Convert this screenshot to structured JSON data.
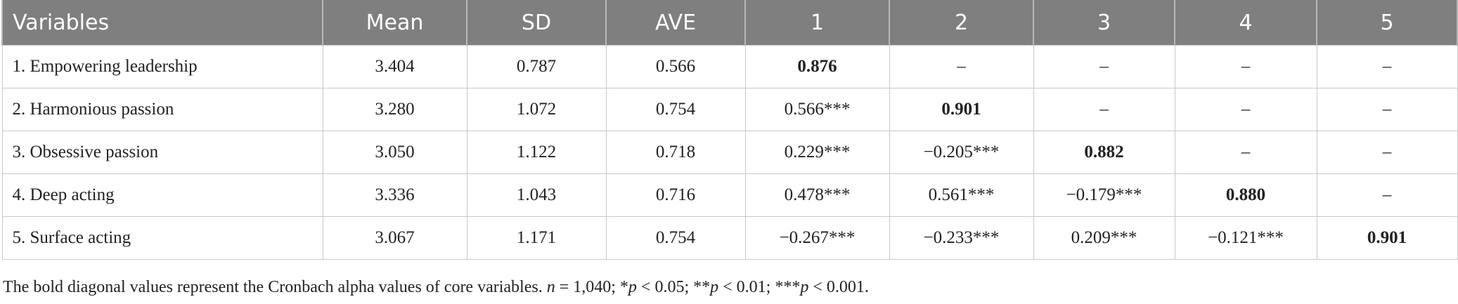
{
  "table": {
    "columns": [
      "Variables",
      "Mean",
      "SD",
      "AVE",
      "1",
      "2",
      "3",
      "4",
      "5"
    ],
    "rows": [
      [
        "1. Empowering leadership",
        "3.404",
        "0.787",
        "0.566",
        "0.876",
        "–",
        "–",
        "–",
        "–"
      ],
      [
        "2. Harmonious passion",
        "3.280",
        "1.072",
        "0.754",
        "0.566***",
        "0.901",
        "–",
        "–",
        "–"
      ],
      [
        "3. Obsessive passion",
        "3.050",
        "1.122",
        "0.718",
        "0.229***",
        "−0.205***",
        "0.882",
        "–",
        "–"
      ],
      [
        "4. Deep acting",
        "3.336",
        "1.043",
        "0.716",
        "0.478***",
        "0.561***",
        "−0.179***",
        "0.880",
        "–"
      ],
      [
        "5. Surface acting",
        "3.067",
        "1.171",
        "0.754",
        "−0.267***",
        "−0.233***",
        "0.209***",
        "−0.121***",
        "0.901"
      ]
    ]
  },
  "note": [
    "The bold diagonal values represent the Cronbach alpha values of core variables. ",
    "n",
    " = 1,040; *",
    "p",
    " < 0.05; **",
    "p",
    " < 0.01; ***",
    "p",
    " < 0.001."
  ]
}
